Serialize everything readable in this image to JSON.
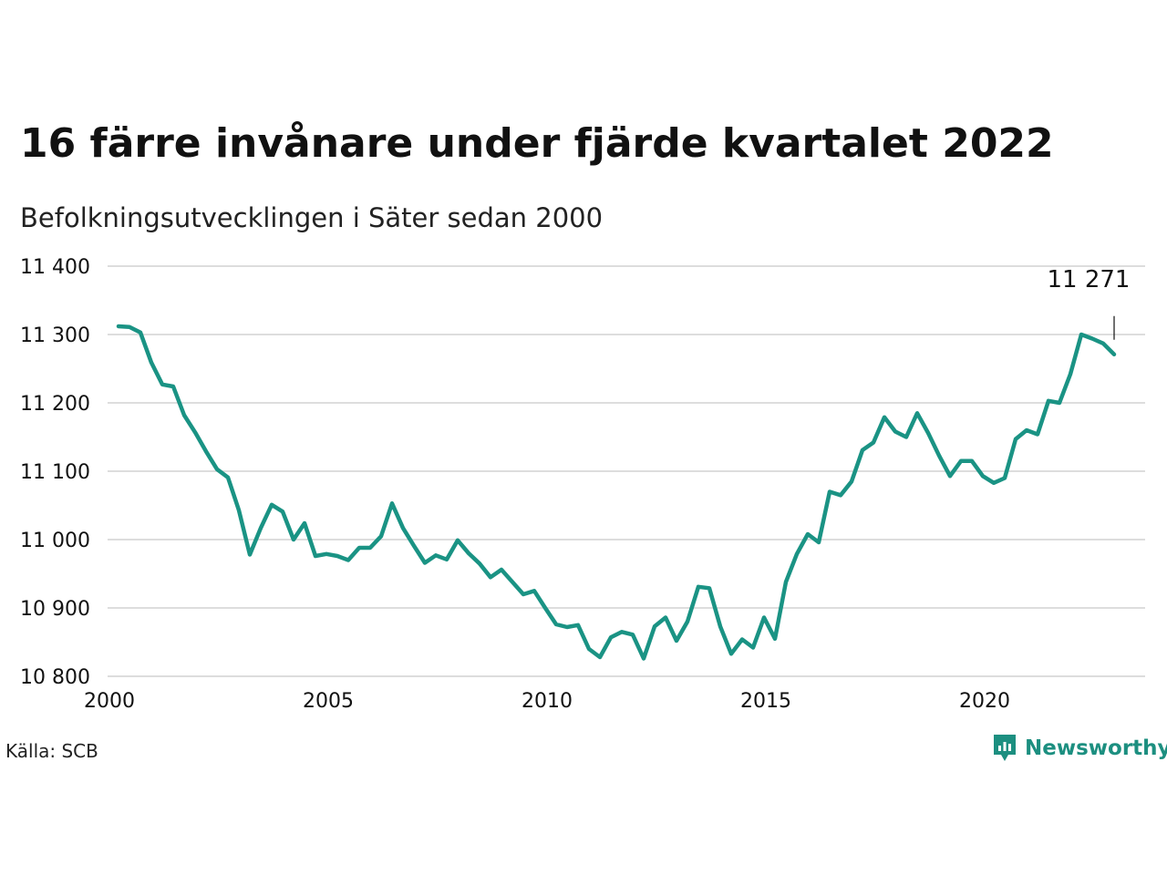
{
  "header": {
    "title": "16 färre invånare under fjärde kvartalet 2022",
    "subtitle": "Befolkningsutvecklingen i Säter sedan 2000"
  },
  "footer": {
    "source": "Källa: SCB",
    "brand": "Newsworthy"
  },
  "colors": {
    "line": "#1a9384",
    "grid": "#dddddd",
    "brand": "#1c8f80"
  },
  "chart_data": {
    "type": "line",
    "xlim": [
      2000,
      2023.5
    ],
    "ylim": [
      10800,
      11400
    ],
    "yticks": [
      10800,
      10900,
      11000,
      11100,
      11200,
      11300,
      11400
    ],
    "ytick_labels": [
      "10 800",
      "10 900",
      "11 000",
      "11 100",
      "11 200",
      "11 300",
      "11 400"
    ],
    "xticks": [
      2000,
      2005,
      2010,
      2015,
      2020
    ],
    "xtick_labels": [
      "2000",
      "2005",
      "2010",
      "2015",
      "2020"
    ],
    "grid": "horizontal",
    "legend": "none",
    "annotation": {
      "x": 2022.75,
      "y": 11271,
      "text": "11 271"
    },
    "series": [
      {
        "x": [
          2000.0,
          2000.25,
          2000.5,
          2000.75,
          2001.0,
          2001.25,
          2001.5,
          2001.75,
          2002.0,
          2002.25,
          2002.5,
          2002.75,
          2003.0,
          2003.25,
          2003.5,
          2003.75,
          2004.0,
          2004.25,
          2004.5,
          2004.75,
          2005.0,
          2005.25,
          2005.5,
          2005.75,
          2006.0,
          2006.25,
          2006.5,
          2006.75,
          2007.0,
          2007.25,
          2007.5,
          2007.75,
          2008.0,
          2008.25,
          2008.5,
          2008.75,
          2009.0,
          2009.25,
          2009.5,
          2009.75,
          2010.0,
          2010.25,
          2010.5,
          2010.75,
          2011.0,
          2011.25,
          2011.5,
          2011.75,
          2012.0,
          2012.25,
          2012.5,
          2012.75,
          2013.0,
          2013.25,
          2013.5,
          2013.75,
          2014.0,
          2014.25,
          2014.5,
          2014.75,
          2015.0,
          2015.25,
          2015.5,
          2015.75,
          2016.0,
          2016.25,
          2016.5,
          2016.75,
          2017.0,
          2017.25,
          2017.5,
          2017.75,
          2018.0,
          2018.25,
          2018.5,
          2018.75,
          2019.0,
          2019.25,
          2019.5,
          2019.75,
          2020.0,
          2020.25,
          2020.5,
          2020.75,
          2021.0,
          2021.25,
          2021.5,
          2021.75,
          2022.0,
          2022.25,
          2022.5,
          2022.75
        ],
        "values": [
          11312,
          11311,
          11303,
          11259,
          11227,
          11224,
          11182,
          11157,
          11129,
          11103,
          11091,
          11043,
          10978,
          11017,
          11051,
          11041,
          11000,
          11024,
          10976,
          10979,
          10976,
          10970,
          10988,
          10988,
          11005,
          11053,
          11017,
          10991,
          10966,
          10977,
          10971,
          10999,
          10980,
          10965,
          10945,
          10956,
          10938,
          10920,
          10925,
          10900,
          10876,
          10872,
          10875,
          10840,
          10828,
          10857,
          10865,
          10861,
          10826,
          10873,
          10886,
          10852,
          10880,
          10931,
          10929,
          10873,
          10833,
          10854,
          10842,
          10886,
          10855,
          10938,
          10979,
          11008,
          10996,
          11070,
          11065,
          11085,
          11131,
          11142,
          11179,
          11158,
          11150,
          11185,
          11156,
          11123,
          11093,
          11115,
          11115,
          11093,
          11083,
          11090,
          11147,
          11160,
          11154,
          11203,
          11200,
          11242,
          11300,
          11294,
          11287,
          11271
        ]
      }
    ]
  }
}
